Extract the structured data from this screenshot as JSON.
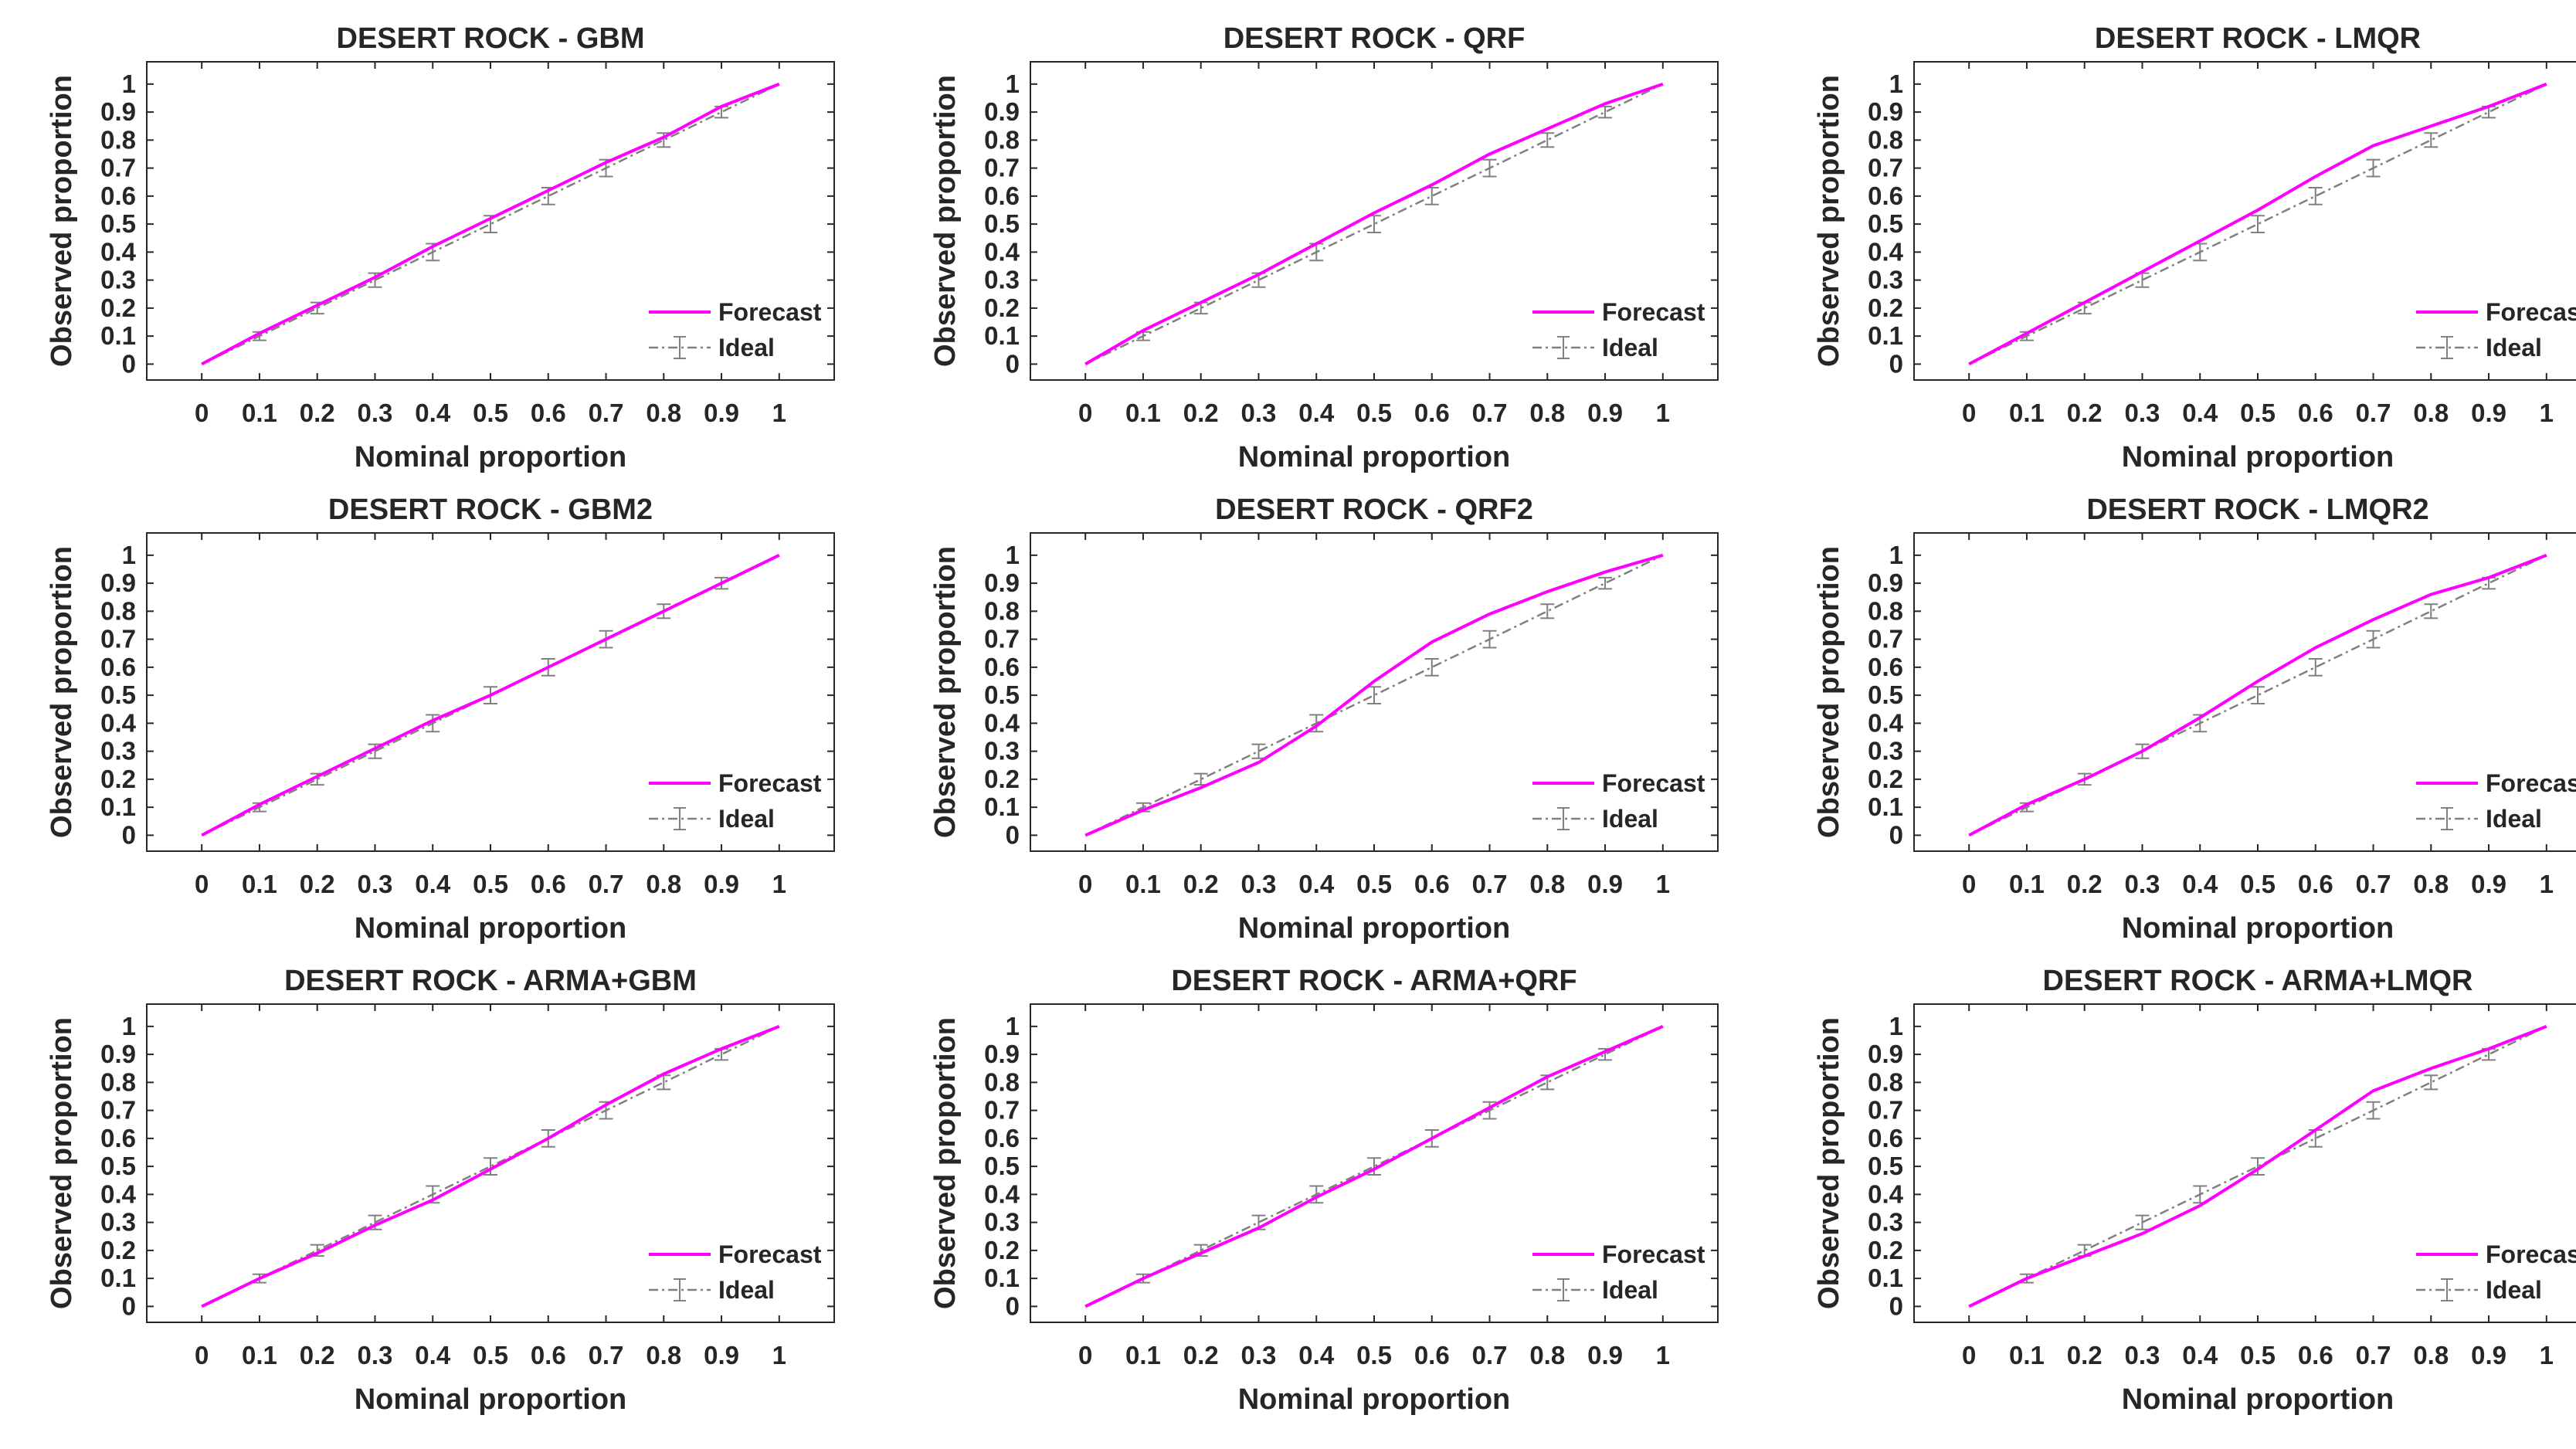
{
  "figure_colors": {
    "forecast": "#ff00ff",
    "ideal": "#808080",
    "axis": "#262626"
  },
  "chart_data": [
    {
      "type": "line",
      "title": "DESERT ROCK - GBM",
      "xlabel": "Nominal proportion",
      "ylabel": "Observed proportion",
      "xlim": [
        0,
        1
      ],
      "ylim": [
        0,
        1
      ],
      "x_ticks": [
        "0",
        "0.1",
        "0.2",
        "0.3",
        "0.4",
        "0.5",
        "0.6",
        "0.7",
        "0.8",
        "0.9",
        "1"
      ],
      "y_ticks": [
        "0",
        "0.1",
        "0.2",
        "0.3",
        "0.4",
        "0.5",
        "0.6",
        "0.7",
        "0.8",
        "0.9",
        "1"
      ],
      "x": [
        0,
        0.1,
        0.2,
        0.3,
        0.4,
        0.5,
        0.6,
        0.7,
        0.8,
        0.9,
        1
      ],
      "legend": [
        "Forecast",
        "Ideal"
      ],
      "legend_position": "bottom-right",
      "series": [
        {
          "name": "Forecast",
          "values": [
            0,
            0.11,
            0.21,
            0.31,
            0.42,
            0.52,
            0.62,
            0.72,
            0.81,
            0.92,
            1
          ]
        },
        {
          "name": "Ideal",
          "values": [
            0,
            0.1,
            0.2,
            0.3,
            0.4,
            0.5,
            0.6,
            0.7,
            0.8,
            0.9,
            1
          ],
          "error": [
            0,
            0.015,
            0.02,
            0.025,
            0.03,
            0.03,
            0.03,
            0.03,
            0.025,
            0.02,
            0
          ]
        }
      ]
    },
    {
      "type": "line",
      "title": "DESERT ROCK - QRF",
      "xlabel": "Nominal proportion",
      "ylabel": "Observed proportion",
      "xlim": [
        0,
        1
      ],
      "ylim": [
        0,
        1
      ],
      "x_ticks": [
        "0",
        "0.1",
        "0.2",
        "0.3",
        "0.4",
        "0.5",
        "0.6",
        "0.7",
        "0.8",
        "0.9",
        "1"
      ],
      "y_ticks": [
        "0",
        "0.1",
        "0.2",
        "0.3",
        "0.4",
        "0.5",
        "0.6",
        "0.7",
        "0.8",
        "0.9",
        "1"
      ],
      "x": [
        0,
        0.1,
        0.2,
        0.3,
        0.4,
        0.5,
        0.6,
        0.7,
        0.8,
        0.9,
        1
      ],
      "legend": [
        "Forecast",
        "Ideal"
      ],
      "legend_position": "bottom-right",
      "series": [
        {
          "name": "Forecast",
          "values": [
            0,
            0.12,
            0.22,
            0.32,
            0.43,
            0.54,
            0.64,
            0.75,
            0.84,
            0.93,
            1
          ]
        },
        {
          "name": "Ideal",
          "values": [
            0,
            0.1,
            0.2,
            0.3,
            0.4,
            0.5,
            0.6,
            0.7,
            0.8,
            0.9,
            1
          ],
          "error": [
            0,
            0.015,
            0.02,
            0.025,
            0.03,
            0.03,
            0.03,
            0.03,
            0.025,
            0.02,
            0
          ]
        }
      ]
    },
    {
      "type": "line",
      "title": "DESERT ROCK - LMQR",
      "xlabel": "Nominal proportion",
      "ylabel": "Observed proportion",
      "xlim": [
        0,
        1
      ],
      "ylim": [
        0,
        1
      ],
      "x_ticks": [
        "0",
        "0.1",
        "0.2",
        "0.3",
        "0.4",
        "0.5",
        "0.6",
        "0.7",
        "0.8",
        "0.9",
        "1"
      ],
      "y_ticks": [
        "0",
        "0.1",
        "0.2",
        "0.3",
        "0.4",
        "0.5",
        "0.6",
        "0.7",
        "0.8",
        "0.9",
        "1"
      ],
      "x": [
        0,
        0.1,
        0.2,
        0.3,
        0.4,
        0.5,
        0.6,
        0.7,
        0.8,
        0.9,
        1
      ],
      "legend": [
        "Forecast",
        "Ideal"
      ],
      "legend_position": "bottom-right",
      "series": [
        {
          "name": "Forecast",
          "values": [
            0,
            0.11,
            0.22,
            0.33,
            0.44,
            0.55,
            0.67,
            0.78,
            0.85,
            0.92,
            1
          ]
        },
        {
          "name": "Ideal",
          "values": [
            0,
            0.1,
            0.2,
            0.3,
            0.4,
            0.5,
            0.6,
            0.7,
            0.8,
            0.9,
            1
          ],
          "error": [
            0,
            0.015,
            0.02,
            0.025,
            0.03,
            0.03,
            0.03,
            0.03,
            0.025,
            0.02,
            0
          ]
        }
      ]
    },
    {
      "type": "line",
      "title": "DESERT ROCK - GBM2",
      "xlabel": "Nominal proportion",
      "ylabel": "Observed proportion",
      "xlim": [
        0,
        1
      ],
      "ylim": [
        0,
        1
      ],
      "x_ticks": [
        "0",
        "0.1",
        "0.2",
        "0.3",
        "0.4",
        "0.5",
        "0.6",
        "0.7",
        "0.8",
        "0.9",
        "1"
      ],
      "y_ticks": [
        "0",
        "0.1",
        "0.2",
        "0.3",
        "0.4",
        "0.5",
        "0.6",
        "0.7",
        "0.8",
        "0.9",
        "1"
      ],
      "x": [
        0,
        0.1,
        0.2,
        0.3,
        0.4,
        0.5,
        0.6,
        0.7,
        0.8,
        0.9,
        1
      ],
      "legend": [
        "Forecast",
        "Ideal"
      ],
      "legend_position": "bottom-right",
      "series": [
        {
          "name": "Forecast",
          "values": [
            0,
            0.11,
            0.21,
            0.31,
            0.41,
            0.5,
            0.6,
            0.7,
            0.8,
            0.9,
            1
          ]
        },
        {
          "name": "Ideal",
          "values": [
            0,
            0.1,
            0.2,
            0.3,
            0.4,
            0.5,
            0.6,
            0.7,
            0.8,
            0.9,
            1
          ],
          "error": [
            0,
            0.015,
            0.02,
            0.025,
            0.03,
            0.03,
            0.03,
            0.03,
            0.025,
            0.02,
            0
          ]
        }
      ]
    },
    {
      "type": "line",
      "title": "DESERT ROCK - QRF2",
      "xlabel": "Nominal proportion",
      "ylabel": "Observed proportion",
      "xlim": [
        0,
        1
      ],
      "ylim": [
        0,
        1
      ],
      "x_ticks": [
        "0",
        "0.1",
        "0.2",
        "0.3",
        "0.4",
        "0.5",
        "0.6",
        "0.7",
        "0.8",
        "0.9",
        "1"
      ],
      "y_ticks": [
        "0",
        "0.1",
        "0.2",
        "0.3",
        "0.4",
        "0.5",
        "0.6",
        "0.7",
        "0.8",
        "0.9",
        "1"
      ],
      "x": [
        0,
        0.1,
        0.2,
        0.3,
        0.4,
        0.5,
        0.6,
        0.7,
        0.8,
        0.9,
        1
      ],
      "legend": [
        "Forecast",
        "Ideal"
      ],
      "legend_position": "bottom-right",
      "series": [
        {
          "name": "Forecast",
          "values": [
            0,
            0.09,
            0.17,
            0.26,
            0.39,
            0.55,
            0.69,
            0.79,
            0.87,
            0.94,
            1
          ]
        },
        {
          "name": "Ideal",
          "values": [
            0,
            0.1,
            0.2,
            0.3,
            0.4,
            0.5,
            0.6,
            0.7,
            0.8,
            0.9,
            1
          ],
          "error": [
            0,
            0.015,
            0.02,
            0.025,
            0.03,
            0.03,
            0.03,
            0.03,
            0.025,
            0.02,
            0
          ]
        }
      ]
    },
    {
      "type": "line",
      "title": "DESERT ROCK - LMQR2",
      "xlabel": "Nominal proportion",
      "ylabel": "Observed proportion",
      "xlim": [
        0,
        1
      ],
      "ylim": [
        0,
        1
      ],
      "x_ticks": [
        "0",
        "0.1",
        "0.2",
        "0.3",
        "0.4",
        "0.5",
        "0.6",
        "0.7",
        "0.8",
        "0.9",
        "1"
      ],
      "y_ticks": [
        "0",
        "0.1",
        "0.2",
        "0.3",
        "0.4",
        "0.5",
        "0.6",
        "0.7",
        "0.8",
        "0.9",
        "1"
      ],
      "x": [
        0,
        0.1,
        0.2,
        0.3,
        0.4,
        0.5,
        0.6,
        0.7,
        0.8,
        0.9,
        1
      ],
      "legend": [
        "Forecast",
        "Ideal"
      ],
      "legend_position": "bottom-right",
      "series": [
        {
          "name": "Forecast",
          "values": [
            0,
            0.11,
            0.2,
            0.3,
            0.42,
            0.55,
            0.67,
            0.77,
            0.86,
            0.92,
            1
          ]
        },
        {
          "name": "Ideal",
          "values": [
            0,
            0.1,
            0.2,
            0.3,
            0.4,
            0.5,
            0.6,
            0.7,
            0.8,
            0.9,
            1
          ],
          "error": [
            0,
            0.015,
            0.02,
            0.025,
            0.03,
            0.03,
            0.03,
            0.03,
            0.025,
            0.02,
            0
          ]
        }
      ]
    },
    {
      "type": "line",
      "title": "DESERT ROCK - ARMA+GBM",
      "xlabel": "Nominal proportion",
      "ylabel": "Observed proportion",
      "xlim": [
        0,
        1
      ],
      "ylim": [
        0,
        1
      ],
      "x_ticks": [
        "0",
        "0.1",
        "0.2",
        "0.3",
        "0.4",
        "0.5",
        "0.6",
        "0.7",
        "0.8",
        "0.9",
        "1"
      ],
      "y_ticks": [
        "0",
        "0.1",
        "0.2",
        "0.3",
        "0.4",
        "0.5",
        "0.6",
        "0.7",
        "0.8",
        "0.9",
        "1"
      ],
      "x": [
        0,
        0.1,
        0.2,
        0.3,
        0.4,
        0.5,
        0.6,
        0.7,
        0.8,
        0.9,
        1
      ],
      "legend": [
        "Forecast",
        "Ideal"
      ],
      "legend_position": "bottom-right",
      "series": [
        {
          "name": "Forecast",
          "values": [
            0,
            0.1,
            0.19,
            0.29,
            0.38,
            0.49,
            0.6,
            0.72,
            0.83,
            0.92,
            1
          ]
        },
        {
          "name": "Ideal",
          "values": [
            0,
            0.1,
            0.2,
            0.3,
            0.4,
            0.5,
            0.6,
            0.7,
            0.8,
            0.9,
            1
          ],
          "error": [
            0,
            0.015,
            0.02,
            0.025,
            0.03,
            0.03,
            0.03,
            0.03,
            0.025,
            0.02,
            0
          ]
        }
      ]
    },
    {
      "type": "line",
      "title": "DESERT ROCK - ARMA+QRF",
      "xlabel": "Nominal proportion",
      "ylabel": "Observed proportion",
      "xlim": [
        0,
        1
      ],
      "ylim": [
        0,
        1
      ],
      "x_ticks": [
        "0",
        "0.1",
        "0.2",
        "0.3",
        "0.4",
        "0.5",
        "0.6",
        "0.7",
        "0.8",
        "0.9",
        "1"
      ],
      "y_ticks": [
        "0",
        "0.1",
        "0.2",
        "0.3",
        "0.4",
        "0.5",
        "0.6",
        "0.7",
        "0.8",
        "0.9",
        "1"
      ],
      "x": [
        0,
        0.1,
        0.2,
        0.3,
        0.4,
        0.5,
        0.6,
        0.7,
        0.8,
        0.9,
        1
      ],
      "legend": [
        "Forecast",
        "Ideal"
      ],
      "legend_position": "bottom-right",
      "series": [
        {
          "name": "Forecast",
          "values": [
            0,
            0.1,
            0.19,
            0.28,
            0.39,
            0.49,
            0.6,
            0.71,
            0.82,
            0.91,
            1
          ]
        },
        {
          "name": "Ideal",
          "values": [
            0,
            0.1,
            0.2,
            0.3,
            0.4,
            0.5,
            0.6,
            0.7,
            0.8,
            0.9,
            1
          ],
          "error": [
            0,
            0.015,
            0.02,
            0.025,
            0.03,
            0.03,
            0.03,
            0.03,
            0.025,
            0.02,
            0
          ]
        }
      ]
    },
    {
      "type": "line",
      "title": "DESERT ROCK - ARMA+LMQR",
      "xlabel": "Nominal proportion",
      "ylabel": "Observed proportion",
      "xlim": [
        0,
        1
      ],
      "ylim": [
        0,
        1
      ],
      "x_ticks": [
        "0",
        "0.1",
        "0.2",
        "0.3",
        "0.4",
        "0.5",
        "0.6",
        "0.7",
        "0.8",
        "0.9",
        "1"
      ],
      "y_ticks": [
        "0",
        "0.1",
        "0.2",
        "0.3",
        "0.4",
        "0.5",
        "0.6",
        "0.7",
        "0.8",
        "0.9",
        "1"
      ],
      "x": [
        0,
        0.1,
        0.2,
        0.3,
        0.4,
        0.5,
        0.6,
        0.7,
        0.8,
        0.9,
        1
      ],
      "legend": [
        "Forecast",
        "Ideal"
      ],
      "legend_position": "bottom-right",
      "series": [
        {
          "name": "Forecast",
          "values": [
            0,
            0.1,
            0.18,
            0.26,
            0.36,
            0.49,
            0.63,
            0.77,
            0.85,
            0.92,
            1
          ]
        },
        {
          "name": "Ideal",
          "values": [
            0,
            0.1,
            0.2,
            0.3,
            0.4,
            0.5,
            0.6,
            0.7,
            0.8,
            0.9,
            1
          ],
          "error": [
            0,
            0.015,
            0.02,
            0.025,
            0.03,
            0.03,
            0.03,
            0.03,
            0.025,
            0.02,
            0
          ]
        }
      ]
    }
  ]
}
